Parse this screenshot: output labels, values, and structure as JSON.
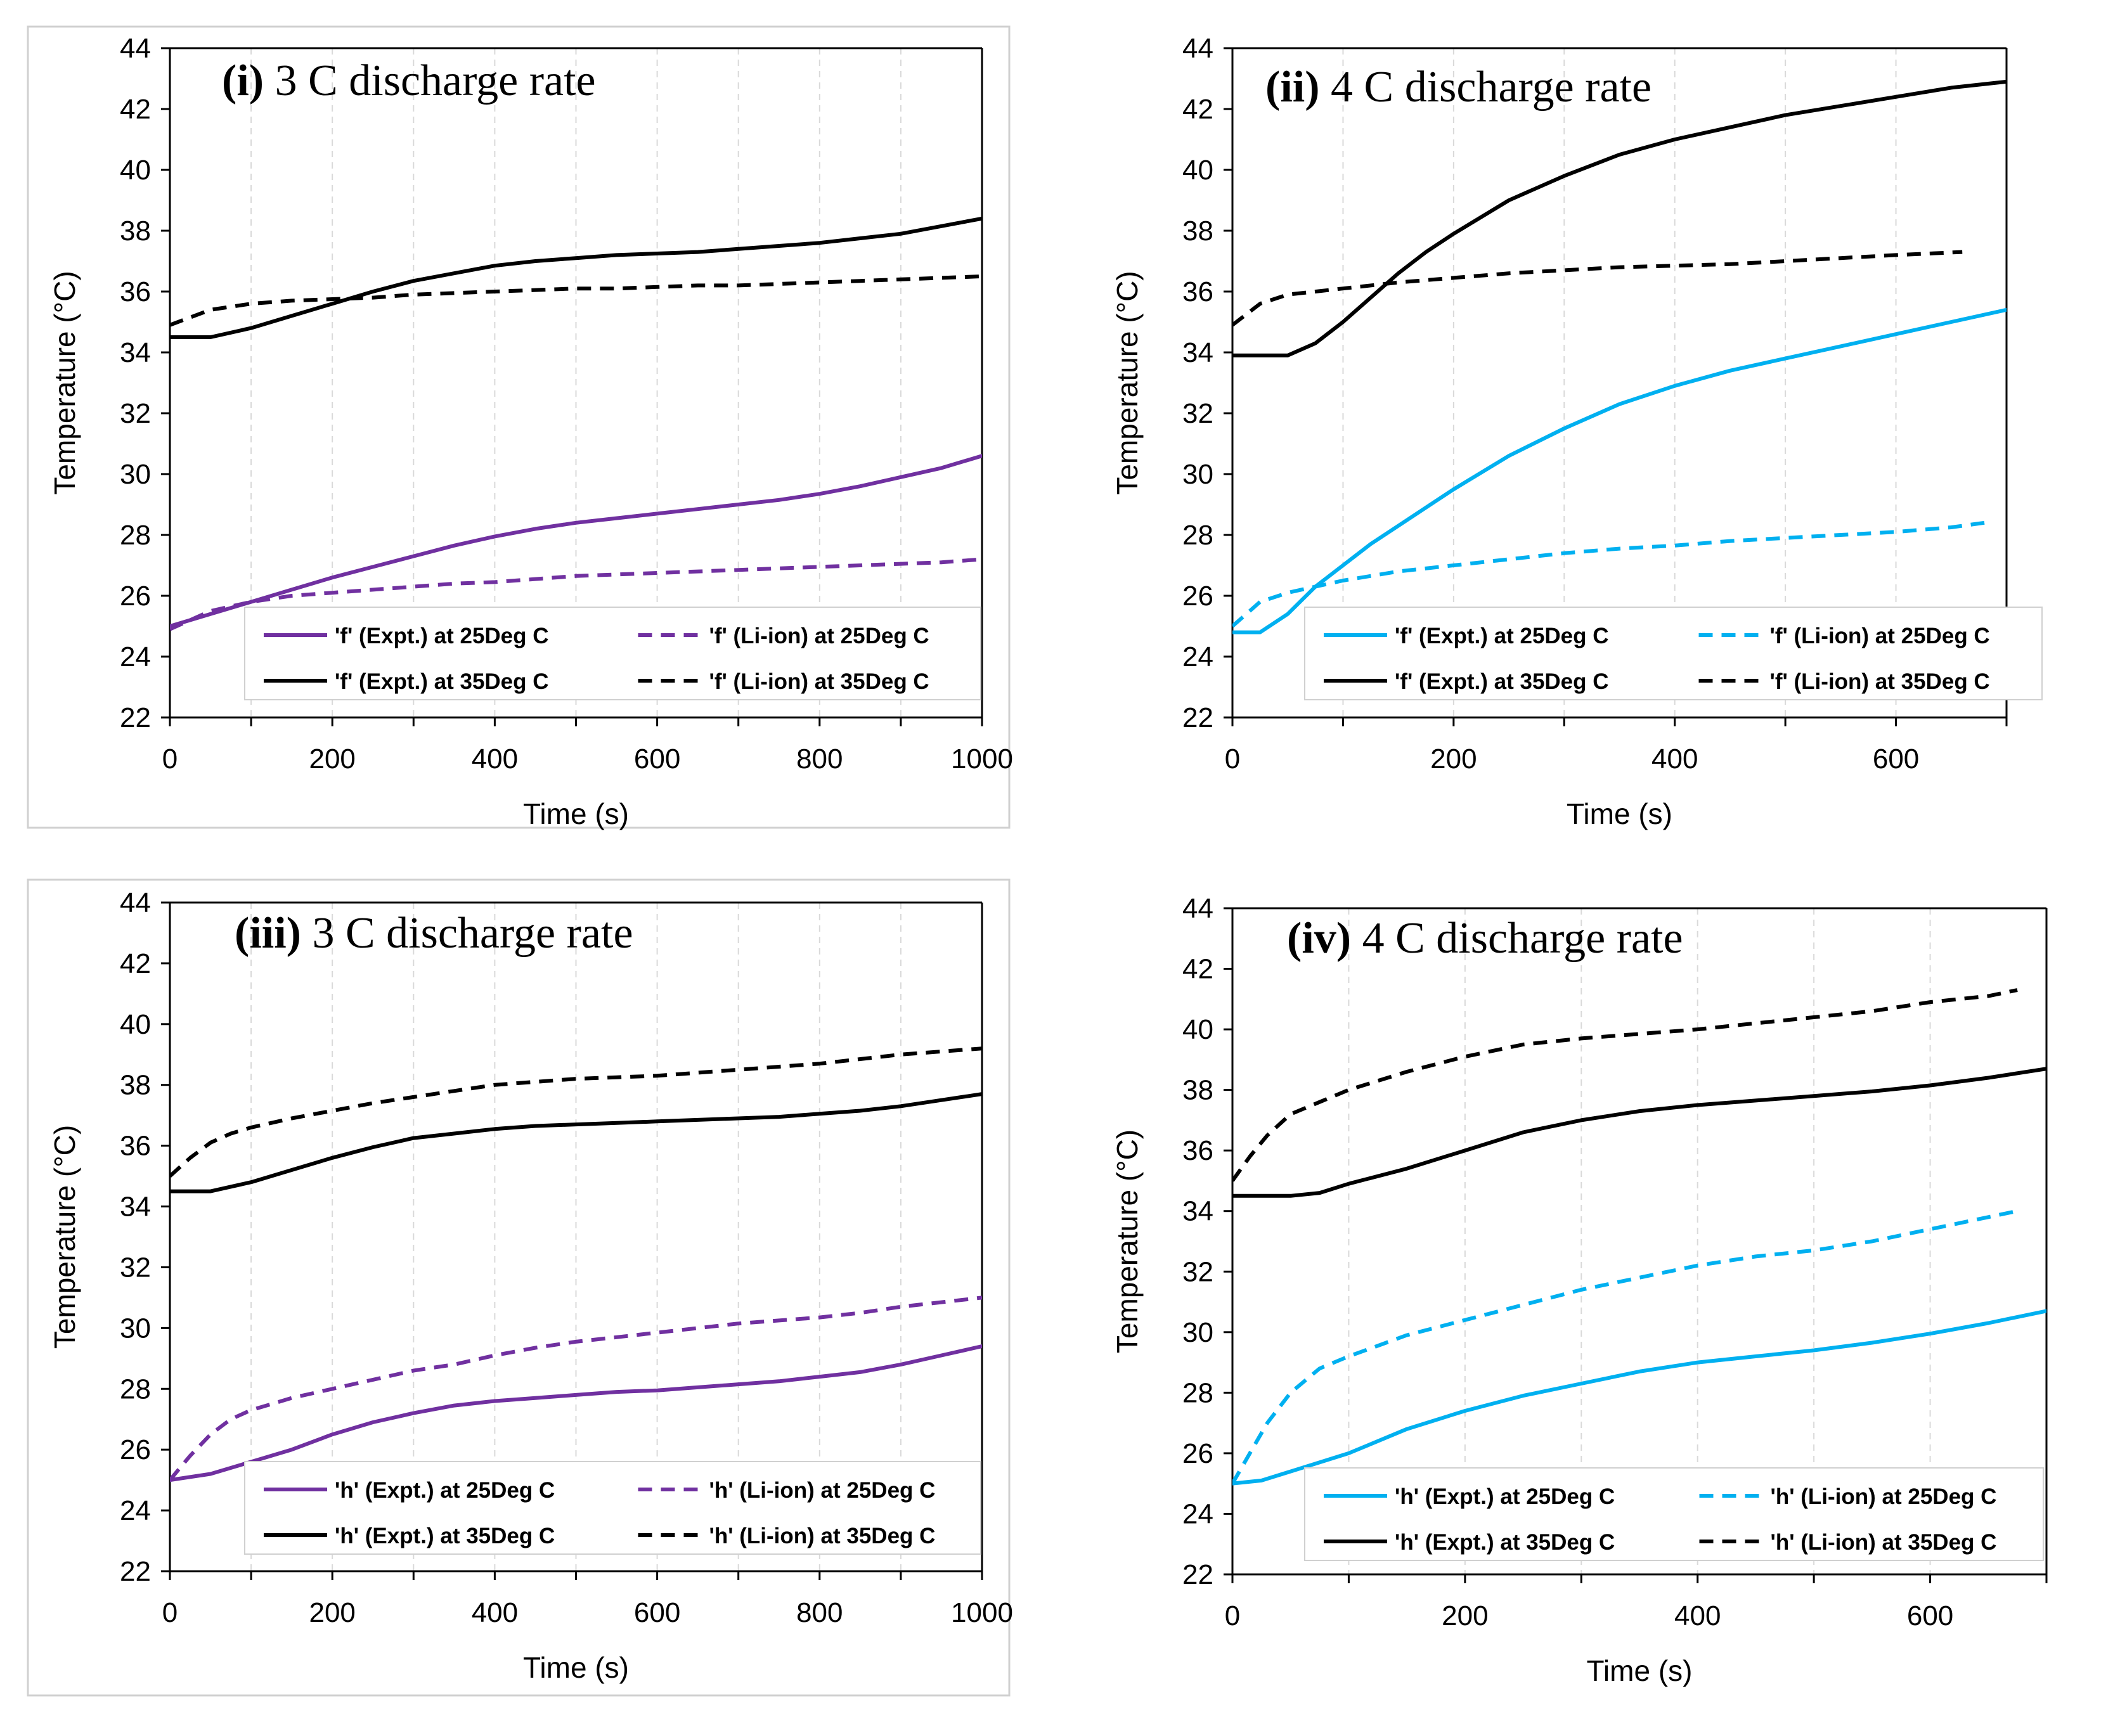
{
  "chart_data": [
    {
      "id": "i",
      "type": "line",
      "title_id": "i",
      "title_text": "3 C discharge rate",
      "xlabel": "Time (s)",
      "ylabel": "Temperature (°C)",
      "xlim": [
        0,
        1000
      ],
      "ylim": [
        22,
        44
      ],
      "xticks": [
        0,
        200,
        400,
        600,
        800,
        1000
      ],
      "yticks": [
        22,
        24,
        26,
        28,
        30,
        32,
        34,
        36,
        38,
        40,
        42,
        44
      ],
      "xtick_labels": [
        "0",
        "200",
        "400",
        "600",
        "800",
        "1000"
      ],
      "ytick_labels": [
        "22",
        "24",
        "26",
        "28",
        "30",
        "32",
        "34",
        "36",
        "38",
        "40",
        "42",
        "44"
      ],
      "legend_position": "bottom-right",
      "series": [
        {
          "name": "'f' (Expt.) at 25Deg C",
          "color": "#7030a0",
          "dashed": false,
          "x": [
            0,
            50,
            100,
            150,
            200,
            250,
            300,
            350,
            400,
            450,
            500,
            550,
            600,
            650,
            700,
            750,
            800,
            850,
            900,
            950,
            1000
          ],
          "y": [
            25.0,
            25.4,
            25.8,
            26.2,
            26.6,
            26.95,
            27.3,
            27.65,
            27.95,
            28.2,
            28.4,
            28.55,
            28.7,
            28.85,
            29.0,
            29.15,
            29.35,
            29.6,
            29.9,
            30.2,
            30.6
          ]
        },
        {
          "name": "'f' (Li-ion) at 25Deg C",
          "color": "#7030a0",
          "dashed": true,
          "x": [
            0,
            50,
            100,
            150,
            200,
            250,
            300,
            350,
            400,
            450,
            500,
            550,
            600,
            650,
            700,
            750,
            800,
            850,
            900,
            950,
            1000
          ],
          "y": [
            24.9,
            25.5,
            25.8,
            26.0,
            26.1,
            26.2,
            26.3,
            26.4,
            26.45,
            26.55,
            26.65,
            26.7,
            26.75,
            26.8,
            26.85,
            26.9,
            26.95,
            27.0,
            27.05,
            27.1,
            27.2
          ]
        },
        {
          "name": "'f' (Expt.) at 35Deg C",
          "color": "#000000",
          "dashed": false,
          "x": [
            0,
            50,
            100,
            150,
            200,
            250,
            300,
            350,
            400,
            450,
            500,
            550,
            600,
            650,
            700,
            750,
            800,
            850,
            900,
            950,
            1000
          ],
          "y": [
            34.5,
            34.5,
            34.8,
            35.2,
            35.6,
            36.0,
            36.35,
            36.6,
            36.85,
            37.0,
            37.1,
            37.2,
            37.25,
            37.3,
            37.4,
            37.5,
            37.6,
            37.75,
            37.9,
            38.15,
            38.4
          ]
        },
        {
          "name": "'f' (Li-ion) at 35Deg C",
          "color": "#000000",
          "dashed": true,
          "x": [
            0,
            50,
            100,
            150,
            200,
            250,
            300,
            350,
            400,
            450,
            500,
            550,
            600,
            650,
            700,
            750,
            800,
            850,
            900,
            950,
            1000
          ],
          "y": [
            34.9,
            35.4,
            35.6,
            35.7,
            35.75,
            35.8,
            35.9,
            35.95,
            36.0,
            36.05,
            36.1,
            36.1,
            36.15,
            36.2,
            36.2,
            36.25,
            36.3,
            36.35,
            36.4,
            36.45,
            36.5
          ]
        }
      ]
    },
    {
      "id": "ii",
      "type": "line",
      "title_id": "ii",
      "title_text": "4 C discharge rate",
      "xlabel": "Time (s)",
      "ylabel": "Temperature (°C)",
      "xlim": [
        0,
        700
      ],
      "ylim": [
        22,
        44
      ],
      "xticks": [
        0,
        200,
        400,
        600
      ],
      "yticks": [
        22,
        24,
        26,
        28,
        30,
        32,
        34,
        36,
        38,
        40,
        42,
        44
      ],
      "xtick_labels": [
        "0",
        "200",
        "400",
        "600"
      ],
      "ytick_labels": [
        "22",
        "24",
        "26",
        "28",
        "30",
        "32",
        "34",
        "36",
        "38",
        "40",
        "42",
        "44"
      ],
      "legend_position": "bottom-right",
      "series": [
        {
          "name": "'f' (Expt.) at 25Deg C",
          "color": "#00b0f0",
          "dashed": false,
          "x": [
            0,
            25,
            50,
            75,
            100,
            125,
            150,
            175,
            200,
            250,
            300,
            350,
            400,
            450,
            500,
            550,
            600,
            650,
            700
          ],
          "y": [
            24.8,
            24.8,
            25.4,
            26.3,
            27.0,
            27.7,
            28.3,
            28.9,
            29.5,
            30.6,
            31.5,
            32.3,
            32.9,
            33.4,
            33.8,
            34.2,
            34.6,
            35.0,
            35.4
          ]
        },
        {
          "name": "'f' (Li-ion) at 25Deg C",
          "color": "#00b0f0",
          "dashed": true,
          "x": [
            0,
            25,
            50,
            75,
            100,
            150,
            200,
            250,
            300,
            350,
            400,
            450,
            500,
            550,
            600,
            650,
            680
          ],
          "y": [
            25.0,
            25.8,
            26.1,
            26.3,
            26.5,
            26.8,
            27.0,
            27.2,
            27.4,
            27.55,
            27.65,
            27.8,
            27.9,
            28.0,
            28.1,
            28.25,
            28.4
          ]
        },
        {
          "name": "'f' (Expt.) at 35Deg C",
          "color": "#000000",
          "dashed": false,
          "x": [
            0,
            25,
            50,
            75,
            100,
            125,
            150,
            175,
            200,
            250,
            300,
            350,
            400,
            450,
            500,
            550,
            600,
            650,
            700
          ],
          "y": [
            33.9,
            33.9,
            33.9,
            34.3,
            35.0,
            35.8,
            36.6,
            37.3,
            37.9,
            39.0,
            39.8,
            40.5,
            41.0,
            41.4,
            41.8,
            42.1,
            42.4,
            42.7,
            42.9
          ]
        },
        {
          "name": "'f' (Li-ion) at 35Deg C",
          "color": "#000000",
          "dashed": true,
          "x": [
            0,
            25,
            50,
            100,
            150,
            200,
            250,
            300,
            350,
            400,
            450,
            500,
            550,
            600,
            660
          ],
          "y": [
            34.9,
            35.6,
            35.9,
            36.1,
            36.3,
            36.45,
            36.6,
            36.7,
            36.8,
            36.85,
            36.9,
            37.0,
            37.1,
            37.2,
            37.3
          ]
        }
      ]
    },
    {
      "id": "iii",
      "type": "line",
      "title_id": "iii",
      "title_text": "3 C discharge rate",
      "xlabel": "Time (s)",
      "ylabel": "Temperature (°C)",
      "xlim": [
        0,
        1000
      ],
      "ylim": [
        22,
        44
      ],
      "xticks": [
        0,
        200,
        400,
        600,
        800,
        1000
      ],
      "yticks": [
        22,
        24,
        26,
        28,
        30,
        32,
        34,
        36,
        38,
        40,
        42,
        44
      ],
      "xtick_labels": [
        "0",
        "200",
        "400",
        "600",
        "800",
        "1000"
      ],
      "ytick_labels": [
        "22",
        "24",
        "26",
        "28",
        "30",
        "32",
        "34",
        "36",
        "38",
        "40",
        "42",
        "44"
      ],
      "legend_position": "bottom-right",
      "series": [
        {
          "name": "'h' (Expt.) at 25Deg C",
          "color": "#7030a0",
          "dashed": false,
          "x": [
            0,
            50,
            100,
            150,
            200,
            250,
            300,
            350,
            400,
            450,
            500,
            550,
            600,
            650,
            700,
            750,
            800,
            850,
            900,
            950,
            1000
          ],
          "y": [
            25.0,
            25.2,
            25.6,
            26.0,
            26.5,
            26.9,
            27.2,
            27.45,
            27.6,
            27.7,
            27.8,
            27.9,
            27.95,
            28.05,
            28.15,
            28.25,
            28.4,
            28.55,
            28.8,
            29.1,
            29.4
          ]
        },
        {
          "name": "'h' (Li-ion) at 25Deg C",
          "color": "#7030a0",
          "dashed": true,
          "x": [
            0,
            25,
            50,
            75,
            100,
            150,
            200,
            250,
            300,
            350,
            400,
            450,
            500,
            550,
            600,
            650,
            700,
            750,
            800,
            850,
            900,
            950,
            1000
          ],
          "y": [
            25.0,
            25.8,
            26.5,
            27.0,
            27.3,
            27.7,
            28.0,
            28.3,
            28.6,
            28.8,
            29.1,
            29.35,
            29.55,
            29.7,
            29.85,
            30.0,
            30.15,
            30.25,
            30.35,
            30.5,
            30.7,
            30.85,
            31.0
          ]
        },
        {
          "name": "'h' (Expt.) at 35Deg C",
          "color": "#000000",
          "dashed": false,
          "x": [
            0,
            50,
            100,
            150,
            200,
            250,
            300,
            350,
            400,
            450,
            500,
            550,
            600,
            650,
            700,
            750,
            800,
            850,
            900,
            950,
            1000
          ],
          "y": [
            34.5,
            34.5,
            34.8,
            35.2,
            35.6,
            35.95,
            36.25,
            36.4,
            36.55,
            36.65,
            36.7,
            36.75,
            36.8,
            36.85,
            36.9,
            36.95,
            37.05,
            37.15,
            37.3,
            37.5,
            37.7
          ]
        },
        {
          "name": "'h' (Li-ion) at 35Deg C",
          "color": "#000000",
          "dashed": true,
          "x": [
            0,
            25,
            50,
            75,
            100,
            150,
            200,
            250,
            300,
            350,
            400,
            450,
            500,
            550,
            600,
            650,
            700,
            750,
            800,
            850,
            900,
            950,
            1000
          ],
          "y": [
            35.0,
            35.6,
            36.1,
            36.4,
            36.6,
            36.9,
            37.15,
            37.4,
            37.6,
            37.8,
            38.0,
            38.1,
            38.2,
            38.25,
            38.3,
            38.4,
            38.5,
            38.6,
            38.7,
            38.85,
            39.0,
            39.1,
            39.2
          ]
        }
      ]
    },
    {
      "id": "iv",
      "type": "line",
      "title_id": "iv",
      "title_text": "4 C discharge rate",
      "xlabel": "Time (s)",
      "ylabel": "Temperature (°C)",
      "xlim": [
        0,
        700
      ],
      "ylim": [
        22,
        44
      ],
      "xticks": [
        0,
        200,
        400,
        600
      ],
      "yticks": [
        22,
        24,
        26,
        28,
        30,
        32,
        34,
        36,
        38,
        40,
        42,
        44
      ],
      "xtick_labels": [
        "0",
        "200",
        "400",
        "600"
      ],
      "ytick_labels": [
        "22",
        "24",
        "26",
        "28",
        "30",
        "32",
        "34",
        "36",
        "38",
        "40",
        "42",
        "44"
      ],
      "legend_position": "bottom-right",
      "series": [
        {
          "name": "'h' (Expt.) at 25Deg C",
          "color": "#00b0f0",
          "dashed": false,
          "x": [
            0,
            25,
            50,
            75,
            100,
            150,
            200,
            250,
            300,
            350,
            400,
            450,
            500,
            550,
            600,
            650,
            700
          ],
          "y": [
            25.0,
            25.1,
            25.4,
            25.7,
            26.0,
            26.8,
            27.4,
            27.9,
            28.3,
            28.7,
            29.0,
            29.2,
            29.4,
            29.65,
            29.95,
            30.3,
            30.7
          ]
        },
        {
          "name": "'h' (Li-ion) at 25Deg C",
          "color": "#00b0f0",
          "dashed": true,
          "x": [
            0,
            15,
            30,
            50,
            75,
            100,
            150,
            200,
            250,
            300,
            350,
            400,
            450,
            500,
            550,
            600,
            650,
            675
          ],
          "y": [
            25.0,
            26.0,
            27.0,
            28.0,
            28.8,
            29.2,
            29.9,
            30.4,
            30.9,
            31.4,
            31.8,
            32.2,
            32.5,
            32.7,
            33.0,
            33.4,
            33.8,
            34.0
          ]
        },
        {
          "name": "'h' (Expt.) at 35Deg C",
          "color": "#000000",
          "dashed": false,
          "x": [
            0,
            25,
            50,
            75,
            100,
            150,
            200,
            250,
            300,
            350,
            400,
            450,
            500,
            550,
            600,
            650,
            700
          ],
          "y": [
            34.5,
            34.5,
            34.5,
            34.6,
            34.9,
            35.4,
            36.0,
            36.6,
            37.0,
            37.3,
            37.5,
            37.65,
            37.8,
            37.95,
            38.15,
            38.4,
            38.7
          ]
        },
        {
          "name": "'h' (Li-ion) at 35Deg C",
          "color": "#000000",
          "dashed": true,
          "x": [
            0,
            15,
            30,
            50,
            75,
            100,
            150,
            200,
            250,
            300,
            350,
            400,
            450,
            500,
            550,
            600,
            650,
            675
          ],
          "y": [
            35.0,
            35.8,
            36.5,
            37.2,
            37.6,
            38.0,
            38.6,
            39.1,
            39.5,
            39.7,
            39.85,
            40.0,
            40.2,
            40.4,
            40.6,
            40.9,
            41.1,
            41.3
          ]
        }
      ]
    }
  ]
}
